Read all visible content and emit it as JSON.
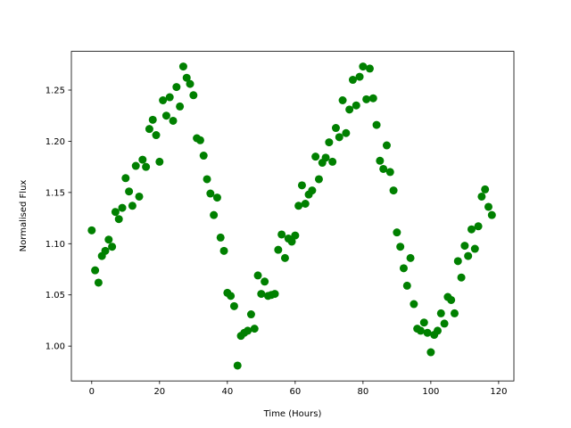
{
  "chart_data": {
    "type": "scatter",
    "x_label": "Time (Hours)",
    "y_label": "Normalised Flux",
    "color": "#008000",
    "x": [
      0,
      1,
      2,
      3,
      4,
      5,
      6,
      7,
      8,
      9,
      10,
      11,
      12,
      13,
      14,
      15,
      16,
      17,
      18,
      19,
      20,
      21,
      22,
      23,
      24,
      25,
      26,
      27,
      28,
      29,
      30,
      31,
      32,
      33,
      34,
      35,
      36,
      37,
      38,
      39,
      40,
      41,
      42,
      43,
      44,
      45,
      46,
      47,
      48,
      49,
      50,
      51,
      52,
      53,
      54,
      55,
      56,
      57,
      58,
      59,
      60,
      61,
      62,
      63,
      64,
      65,
      66,
      67,
      68,
      69,
      70,
      71,
      72,
      73,
      74,
      75,
      76,
      77,
      78,
      79,
      80,
      81,
      82,
      83,
      84,
      85,
      86,
      87,
      88,
      89,
      90,
      91,
      92,
      93,
      94,
      95,
      96,
      97,
      98,
      99,
      100,
      101,
      102,
      103,
      104,
      105,
      106,
      107,
      108,
      109,
      110,
      111,
      112,
      113,
      114,
      115,
      116,
      117,
      118
    ],
    "values": [
      1.113,
      1.074,
      1.062,
      1.088,
      1.093,
      1.104,
      1.097,
      1.131,
      1.124,
      1.135,
      1.164,
      1.151,
      1.137,
      1.176,
      1.146,
      1.182,
      1.175,
      1.212,
      1.221,
      1.206,
      1.18,
      1.24,
      1.225,
      1.243,
      1.22,
      1.253,
      1.234,
      1.273,
      1.262,
      1.256,
      1.245,
      1.203,
      1.201,
      1.186,
      1.163,
      1.149,
      1.128,
      1.145,
      1.106,
      1.093,
      1.052,
      1.049,
      1.039,
      0.981,
      1.01,
      1.013,
      1.015,
      1.031,
      1.017,
      1.069,
      1.051,
      1.063,
      1.049,
      1.05,
      1.051,
      1.094,
      1.109,
      1.086,
      1.105,
      1.102,
      1.108,
      1.137,
      1.157,
      1.139,
      1.148,
      1.152,
      1.185,
      1.163,
      1.179,
      1.184,
      1.199,
      1.18,
      1.213,
      1.204,
      1.24,
      1.208,
      1.231,
      1.26,
      1.235,
      1.263,
      1.273,
      1.241,
      1.271,
      1.242,
      1.216,
      1.181,
      1.173,
      1.196,
      1.17,
      1.152,
      1.111,
      1.097,
      1.076,
      1.059,
      1.086,
      1.041,
      1.017,
      1.015,
      1.023,
      1.013,
      0.994,
      1.011,
      1.015,
      1.032,
      1.022,
      1.048,
      1.045,
      1.032,
      1.083,
      1.067,
      1.098,
      1.088,
      1.114,
      1.095,
      1.117,
      1.146,
      1.153,
      1.136,
      1.128
    ],
    "xlim": [
      -6,
      124.5
    ],
    "xticks": [
      0,
      20,
      40,
      60,
      80,
      100,
      120
    ],
    "ylim": [
      0.966,
      1.2878
    ],
    "yticks": [
      {
        "value": 1.0,
        "label": "1.00"
      },
      1.05,
      {
        "value": 1.1,
        "label": "1.10"
      },
      1.15,
      {
        "value": 1.2,
        "label": "1.20"
      },
      1.25
    ]
  }
}
